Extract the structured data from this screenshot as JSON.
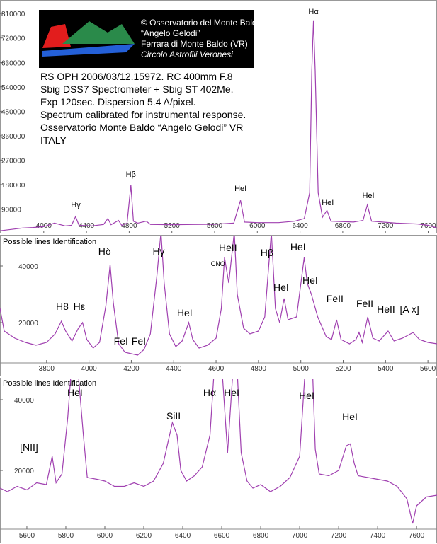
{
  "header": {
    "logo_lines": [
      "© Osservatorio del Monte Baldo",
      "“Angelo Gelodi”",
      "Ferrara di Monte Baldo (VR)",
      "Circolo Astrofili Veronesi"
    ],
    "info_lines": [
      "RS OPH 2006/03/12.15972. RC 400mm F.8",
      "Sbig DSS7 Spectrometer + Sbig ST 402Me.",
      "Exp 120sec. Dispersion 5.4 A/pixel.",
      "Spectrum calibrated for instrumental response.",
      "Osservatorio Monte Baldo “Angelo Gelodi” VR",
      "ITALY"
    ]
  },
  "chart_data": [
    {
      "type": "line",
      "color": "#a040b0",
      "x": [
        3590,
        3700,
        3800,
        3900,
        4000,
        4100,
        4200,
        4260,
        4298,
        4330,
        4450,
        4560,
        4600,
        4630,
        4700,
        4730,
        4780,
        4816,
        4840,
        4880,
        4960,
        5000,
        5200,
        5400,
        5600,
        5780,
        5843,
        5880,
        6000,
        6200,
        6350,
        6440,
        6490,
        6510,
        6526,
        6542,
        6570,
        6610,
        6652,
        6690,
        6900,
        6990,
        7030,
        7070,
        7300,
        7500,
        7600,
        7683
      ],
      "values": [
        10000,
        15000,
        20000,
        22000,
        25000,
        38000,
        28000,
        30000,
        62000,
        30000,
        28000,
        33000,
        55000,
        32000,
        48000,
        30000,
        38000,
        178000,
        45000,
        38000,
        45000,
        33000,
        32000,
        33000,
        34000,
        38000,
        122000,
        42000,
        40000,
        40000,
        45000,
        55000,
        150000,
        600000,
        785000,
        600000,
        150000,
        60000,
        85000,
        45000,
        42000,
        48000,
        105000,
        45000,
        38000,
        35000,
        30000,
        20000
      ],
      "xlim": [
        3590,
        7683
      ],
      "ylim": [
        0,
        860000
      ],
      "xticks": [
        4000,
        4400,
        4800,
        5200,
        5600,
        6000,
        6400,
        6800,
        7200,
        7600
      ],
      "yticks": [
        90000,
        180000,
        270000,
        360000,
        450000,
        540000,
        630000,
        720000,
        810000
      ],
      "annotations": [
        {
          "text": "Hγ",
          "x": 4300,
          "y": 96000
        },
        {
          "text": "Hβ",
          "x": 4816,
          "y": 208000
        },
        {
          "text": "HeI",
          "x": 5843,
          "y": 156000
        },
        {
          "text": "Hα",
          "x": 6526,
          "y": 808000
        },
        {
          "text": "HeI",
          "x": 6660,
          "y": 104000
        },
        {
          "text": "HeI",
          "x": 7040,
          "y": 130000
        }
      ]
    },
    {
      "type": "line",
      "color": "#a040b0",
      "subtitle": "Possible lines Identification",
      "x": [
        3580,
        3600,
        3650,
        3700,
        3750,
        3800,
        3840,
        3870,
        3890,
        3920,
        3950,
        3970,
        3990,
        4020,
        4050,
        4080,
        4100,
        4115,
        4140,
        4170,
        4200,
        4230,
        4260,
        4290,
        4320,
        4340,
        4355,
        4380,
        4410,
        4440,
        4471,
        4490,
        4520,
        4560,
        4600,
        4625,
        4640,
        4660,
        4686,
        4700,
        4730,
        4760,
        4800,
        4830,
        4861,
        4880,
        4900,
        4921,
        4940,
        4980,
        5016,
        5030,
        5050,
        5080,
        5120,
        5145,
        5169,
        5190,
        5230,
        5260,
        5275,
        5290,
        5316,
        5340,
        5370,
        5412,
        5440,
        5480,
        5530,
        5560,
        5600,
        5643
      ],
      "values": [
        25000,
        17000,
        14500,
        13000,
        12000,
        13000,
        16000,
        20500,
        17000,
        13500,
        18000,
        20000,
        14000,
        11000,
        13000,
        26000,
        40500,
        27000,
        12500,
        9500,
        9000,
        8500,
        10500,
        16000,
        36000,
        52000,
        34000,
        16000,
        11500,
        13500,
        20000,
        14000,
        11000,
        12000,
        14500,
        25000,
        43000,
        34000,
        52000,
        30000,
        18000,
        16000,
        17000,
        22000,
        52000,
        25000,
        20000,
        28500,
        21000,
        22000,
        43000,
        34000,
        30000,
        22000,
        15000,
        14000,
        21000,
        14000,
        12500,
        14000,
        16500,
        13000,
        22000,
        14500,
        13500,
        17000,
        13500,
        14500,
        16500,
        14000,
        13000,
        12500
      ],
      "xlim": [
        3580,
        5643
      ],
      "ylim": [
        5750,
        50750
      ],
      "xticks": [
        3800,
        4000,
        4200,
        4400,
        4600,
        4800,
        5000,
        5200,
        5400,
        5600
      ],
      "yticks": [
        20000,
        40000
      ],
      "annotations": [
        {
          "text": "H8",
          "x": 3874,
          "y": 24500
        },
        {
          "text": "Hε",
          "x": 3954,
          "y": 24500
        },
        {
          "text": "Hδ",
          "x": 4074,
          "y": 44000
        },
        {
          "text": "FeI",
          "x": 4151,
          "y": 12250
        },
        {
          "text": "FeI",
          "x": 4235,
          "y": 12250
        },
        {
          "text": "Hγ",
          "x": 4329,
          "y": 44000
        },
        {
          "text": "HeI",
          "x": 4452,
          "y": 22250
        },
        {
          "text": "CNO",
          "x": 4609,
          "y": 40000
        },
        {
          "text": "HeII",
          "x": 4656,
          "y": 45250
        },
        {
          "text": "Hβ",
          "x": 4840,
          "y": 43500
        },
        {
          "text": "HeI",
          "x": 4907,
          "y": 31250
        },
        {
          "text": "HeI",
          "x": 4987,
          "y": 45500
        },
        {
          "text": "HeI",
          "x": 5044,
          "y": 33750
        },
        {
          "text": "FeII",
          "x": 5161,
          "y": 27250
        },
        {
          "text": "FeII",
          "x": 5302,
          "y": 25500
        },
        {
          "text": "HeII",
          "x": 5402,
          "y": 23500
        },
        {
          "text": "[A x]",
          "x": 5513,
          "y": 23500
        }
      ]
    },
    {
      "type": "line",
      "color": "#a040b0",
      "subtitle": "Possible lines Identification",
      "x": [
        5462,
        5500,
        5550,
        5600,
        5650,
        5700,
        5730,
        5750,
        5780,
        5810,
        5830,
        5860,
        5890,
        5910,
        5960,
        6000,
        6050,
        6100,
        6150,
        6200,
        6250,
        6300,
        6347,
        6371,
        6390,
        6420,
        6460,
        6500,
        6540,
        6563,
        6600,
        6630,
        6660,
        6678,
        6700,
        6730,
        6760,
        6800,
        6850,
        6900,
        6950,
        7000,
        7030,
        7065,
        7080,
        7100,
        7150,
        7200,
        7240,
        7260,
        7280,
        7300,
        7350,
        7400,
        7450,
        7500,
        7550,
        7580,
        7600,
        7650,
        7705
      ],
      "values": [
        15000,
        14000,
        15500,
        14500,
        16500,
        16000,
        24000,
        16500,
        19000,
        35000,
        50000,
        50000,
        30000,
        18000,
        17500,
        17000,
        15500,
        15500,
        16500,
        15500,
        17000,
        22000,
        33500,
        30000,
        20000,
        17000,
        18500,
        21000,
        30000,
        50000,
        50000,
        25000,
        50000,
        50000,
        25000,
        17000,
        15000,
        16000,
        14000,
        15500,
        18000,
        24000,
        50000,
        50000,
        26000,
        19000,
        18500,
        20000,
        27000,
        27500,
        22000,
        18500,
        18000,
        17500,
        17000,
        15500,
        12000,
        5000,
        10000,
        12500,
        13000
      ],
      "xlim": [
        5462,
        7705
      ],
      "ylim": [
        3400,
        45800
      ],
      "xticks": [
        5600,
        5800,
        6000,
        6200,
        6400,
        6600,
        6800,
        7000,
        7200,
        7400,
        7600
      ],
      "yticks": [
        20000,
        40000
      ],
      "annotations": [
        {
          "text": "[NII]",
          "x": 5611,
          "y": 25600
        },
        {
          "text": "HeI",
          "x": 5847,
          "y": 41000
        },
        {
          "text": "SiII",
          "x": 6353,
          "y": 34400
        },
        {
          "text": "Hα",
          "x": 6538,
          "y": 41000
        },
        {
          "text": "HeI",
          "x": 6651,
          "y": 41000
        },
        {
          "text": "HeI",
          "x": 7036,
          "y": 40200
        },
        {
          "text": "HeI",
          "x": 7258,
          "y": 34200
        }
      ]
    }
  ]
}
